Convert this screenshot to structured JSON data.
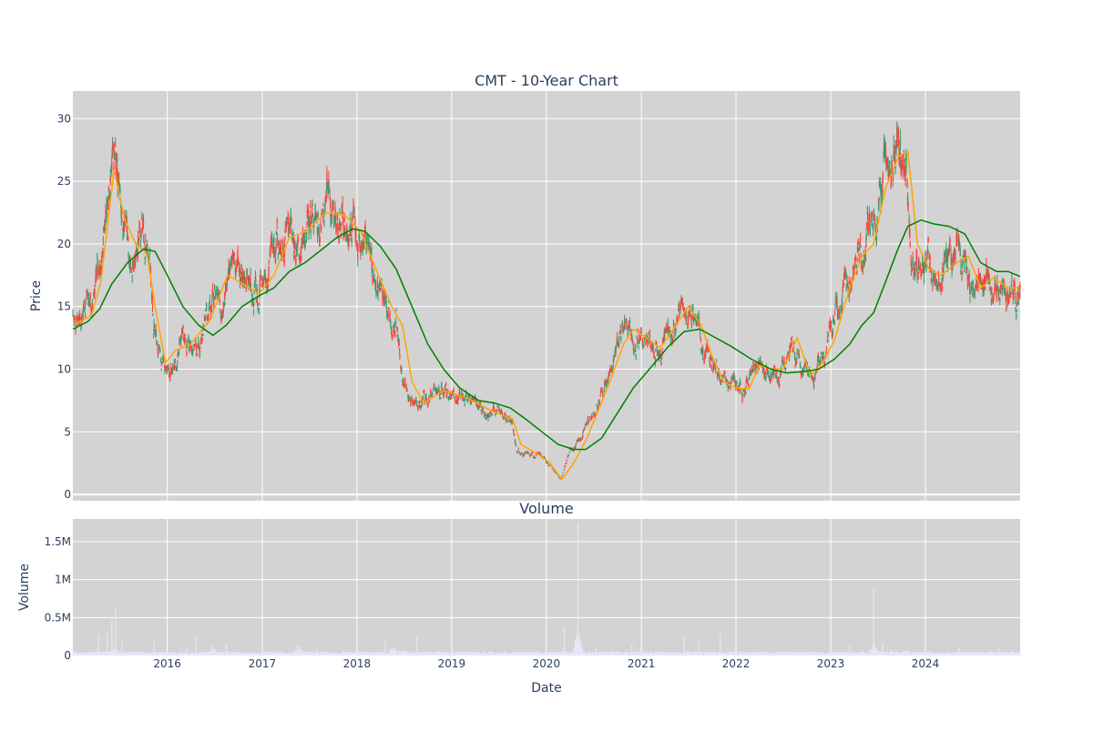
{
  "chart_data": [
    {
      "type": "candlestick",
      "title": "CMT - 10-Year Chart",
      "xlabel": "",
      "ylabel": "Price",
      "x_range": [
        "2015-01-02",
        "2024-12-31"
      ],
      "ylim": [
        -0.5,
        32.2
      ],
      "y_ticks": [
        0,
        5,
        10,
        15,
        20,
        25,
        30
      ],
      "x_ticks": [
        "2016",
        "2017",
        "2018",
        "2019",
        "2020",
        "2021",
        "2022",
        "2023",
        "2024"
      ],
      "grid": true,
      "background": "#d3d3d3",
      "colors": {
        "increasing": "#3d9970",
        "decreasing": "#ff4136",
        "short_ma": "#ffa500",
        "long_ma": "#008000"
      },
      "price_path": [
        [
          "2015-01-02",
          14.0
        ],
        [
          "2015-02-15",
          14.5
        ],
        [
          "2015-03-20",
          15.5
        ],
        [
          "2015-04-20",
          20.0
        ],
        [
          "2015-05-20",
          25.5
        ],
        [
          "2015-06-10",
          27.5
        ],
        [
          "2015-07-10",
          22.0
        ],
        [
          "2015-08-15",
          19.5
        ],
        [
          "2015-09-20",
          20.5
        ],
        [
          "2015-10-25",
          18.5
        ],
        [
          "2015-11-10",
          14.0
        ],
        [
          "2015-12-15",
          10.5
        ],
        [
          "2016-01-20",
          10.2
        ],
        [
          "2016-03-01",
          12.5
        ],
        [
          "2016-04-15",
          12.0
        ],
        [
          "2016-05-20",
          13.0
        ],
        [
          "2016-06-25",
          16.0
        ],
        [
          "2016-07-25",
          15.0
        ],
        [
          "2016-08-25",
          18.5
        ],
        [
          "2016-09-25",
          16.5
        ],
        [
          "2016-11-01",
          17.0
        ],
        [
          "2016-12-10",
          16.0
        ],
        [
          "2017-01-25",
          17.5
        ],
        [
          "2017-03-01",
          20.0
        ],
        [
          "2017-04-01",
          21.5
        ],
        [
          "2017-05-10",
          21.0
        ],
        [
          "2017-06-20",
          21.5
        ],
        [
          "2017-08-01",
          22.5
        ],
        [
          "2017-09-10",
          22.8
        ],
        [
          "2017-10-20",
          22.0
        ],
        [
          "2017-12-01",
          21.5
        ],
        [
          "2018-01-10",
          20.5
        ],
        [
          "2018-02-15",
          18.0
        ],
        [
          "2018-03-20",
          16.0
        ],
        [
          "2018-04-25",
          15.0
        ],
        [
          "2018-06-01",
          14.0
        ],
        [
          "2018-06-25",
          9.5
        ],
        [
          "2018-07-25",
          7.5
        ],
        [
          "2018-09-01",
          7.2
        ],
        [
          "2018-10-15",
          7.8
        ],
        [
          "2018-12-01",
          8.3
        ],
        [
          "2019-01-15",
          7.5
        ],
        [
          "2019-03-01",
          7.7
        ],
        [
          "2019-05-01",
          7.0
        ],
        [
          "2019-07-01",
          6.3
        ],
        [
          "2019-08-20",
          6.0
        ],
        [
          "2019-09-10",
          3.3
        ],
        [
          "2019-10-20",
          3.3
        ],
        [
          "2019-12-15",
          3.0
        ],
        [
          "2020-01-20",
          2.3
        ],
        [
          "2020-02-25",
          1.2
        ],
        [
          "2020-04-01",
          3.5
        ],
        [
          "2020-05-15",
          4.5
        ],
        [
          "2020-06-20",
          6.0
        ],
        [
          "2020-08-01",
          8.5
        ],
        [
          "2020-09-15",
          10.5
        ],
        [
          "2020-11-01",
          13.5
        ],
        [
          "2020-12-15",
          13.0
        ],
        [
          "2021-02-01",
          12.0
        ],
        [
          "2021-03-15",
          11.8
        ],
        [
          "2021-05-01",
          13.5
        ],
        [
          "2021-06-15",
          15.5
        ],
        [
          "2021-08-01",
          14.0
        ],
        [
          "2021-09-15",
          11.5
        ],
        [
          "2021-10-25",
          9.5
        ],
        [
          "2021-12-01",
          8.5
        ],
        [
          "2022-02-01",
          8.5
        ],
        [
          "2022-03-15",
          10.5
        ],
        [
          "2022-05-01",
          10.0
        ],
        [
          "2022-06-15",
          9.5
        ],
        [
          "2022-08-01",
          12.5
        ],
        [
          "2022-09-15",
          9.5
        ],
        [
          "2022-11-01",
          10.0
        ],
        [
          "2022-12-20",
          12.5
        ],
        [
          "2023-02-01",
          15.5
        ],
        [
          "2023-03-20",
          18.0
        ],
        [
          "2023-05-01",
          19.5
        ],
        [
          "2023-06-15",
          22.5
        ],
        [
          "2023-07-25",
          26.0
        ],
        [
          "2023-09-01",
          27.5
        ],
        [
          "2023-10-20",
          26.5
        ],
        [
          "2023-11-05",
          17.5
        ],
        [
          "2023-12-20",
          18.5
        ],
        [
          "2024-02-01",
          17.5
        ],
        [
          "2024-03-15",
          18.5
        ],
        [
          "2024-05-01",
          19.0
        ],
        [
          "2024-06-01",
          18.5
        ],
        [
          "2024-07-01",
          16.0
        ],
        [
          "2024-08-15",
          17.5
        ],
        [
          "2024-10-01",
          17.0
        ],
        [
          "2024-11-15",
          16.5
        ],
        [
          "2024-12-31",
          16.3
        ]
      ],
      "series": [
        {
          "kind": "moving-average-short",
          "color": "#ffa500",
          "points": [
            [
              "2015-01-02",
              13.5
            ],
            [
              "2015-03-15",
              14.3
            ],
            [
              "2015-04-20",
              17.0
            ],
            [
              "2015-06-10",
              25.9
            ],
            [
              "2015-07-20",
              22.0
            ],
            [
              "2015-09-01",
              20.0
            ],
            [
              "2015-10-15",
              19.2
            ],
            [
              "2015-11-15",
              15.0
            ],
            [
              "2015-12-25",
              10.5
            ],
            [
              "2016-02-01",
              11.5
            ],
            [
              "2016-04-01",
              12.0
            ],
            [
              "2016-06-15",
              14.0
            ],
            [
              "2016-08-20",
              17.5
            ],
            [
              "2016-10-20",
              16.8
            ],
            [
              "2016-12-20",
              16.0
            ],
            [
              "2017-02-15",
              17.5
            ],
            [
              "2017-04-15",
              20.5
            ],
            [
              "2017-06-20",
              21.0
            ],
            [
              "2017-09-01",
              22.5
            ],
            [
              "2017-11-15",
              22.3
            ],
            [
              "2018-01-15",
              21.0
            ],
            [
              "2018-03-15",
              18.0
            ],
            [
              "2018-05-15",
              15.0
            ],
            [
              "2018-06-25",
              13.5
            ],
            [
              "2018-08-01",
              9.0
            ],
            [
              "2018-09-15",
              7.3
            ],
            [
              "2018-12-01",
              8.3
            ],
            [
              "2019-03-01",
              7.7
            ],
            [
              "2019-06-01",
              6.7
            ],
            [
              "2019-08-25",
              6.0
            ],
            [
              "2019-09-25",
              4.0
            ],
            [
              "2019-12-01",
              3.2
            ],
            [
              "2020-01-15",
              2.5
            ],
            [
              "2020-03-01",
              1.2
            ],
            [
              "2020-04-15",
              2.5
            ],
            [
              "2020-06-01",
              4.3
            ],
            [
              "2020-07-15",
              6.5
            ],
            [
              "2020-09-01",
              9.0
            ],
            [
              "2020-10-25",
              12.0
            ],
            [
              "2020-12-01",
              13.2
            ],
            [
              "2021-01-20",
              12.5
            ],
            [
              "2021-03-15",
              11.7
            ],
            [
              "2021-05-15",
              13.5
            ],
            [
              "2021-07-01",
              15.0
            ],
            [
              "2021-08-20",
              13.5
            ],
            [
              "2021-10-01",
              11.0
            ],
            [
              "2021-11-15",
              9.0
            ],
            [
              "2022-01-01",
              8.5
            ],
            [
              "2022-02-20",
              8.4
            ],
            [
              "2022-04-01",
              10.3
            ],
            [
              "2022-05-25",
              10.0
            ],
            [
              "2022-07-01",
              10.0
            ],
            [
              "2022-08-25",
              12.5
            ],
            [
              "2022-10-15",
              9.5
            ],
            [
              "2022-12-01",
              10.5
            ],
            [
              "2023-01-15",
              12.3
            ],
            [
              "2023-03-15",
              16.5
            ],
            [
              "2023-05-01",
              19.0
            ],
            [
              "2023-06-15",
              20.0
            ],
            [
              "2023-08-01",
              24.5
            ],
            [
              "2023-09-20",
              27.0
            ],
            [
              "2023-10-25",
              27.4
            ],
            [
              "2023-12-01",
              20.0
            ],
            [
              "2024-01-15",
              18.0
            ],
            [
              "2024-03-01",
              17.5
            ],
            [
              "2024-05-01",
              18.5
            ],
            [
              "2024-06-15",
              19.0
            ],
            [
              "2024-08-01",
              16.5
            ],
            [
              "2024-09-20",
              17.3
            ],
            [
              "2024-11-15",
              16.5
            ],
            [
              "2024-12-31",
              16.5
            ]
          ]
        },
        {
          "kind": "moving-average-long",
          "color": "#008000",
          "points": [
            [
              "2015-01-02",
              13.2
            ],
            [
              "2015-03-01",
              13.8
            ],
            [
              "2015-04-15",
              14.8
            ],
            [
              "2015-06-01",
              16.8
            ],
            [
              "2015-08-01",
              18.5
            ],
            [
              "2015-10-01",
              19.6
            ],
            [
              "2015-11-15",
              19.4
            ],
            [
              "2016-01-01",
              17.5
            ],
            [
              "2016-03-01",
              15.0
            ],
            [
              "2016-05-01",
              13.5
            ],
            [
              "2016-06-25",
              12.7
            ],
            [
              "2016-08-15",
              13.5
            ],
            [
              "2016-10-15",
              15.0
            ],
            [
              "2016-12-15",
              15.8
            ],
            [
              "2017-02-15",
              16.5
            ],
            [
              "2017-04-15",
              17.8
            ],
            [
              "2017-06-15",
              18.5
            ],
            [
              "2017-08-15",
              19.5
            ],
            [
              "2017-10-15",
              20.5
            ],
            [
              "2017-12-15",
              21.2
            ],
            [
              "2018-02-01",
              21.0
            ],
            [
              "2018-04-01",
              19.8
            ],
            [
              "2018-06-01",
              18.0
            ],
            [
              "2018-08-01",
              15.0
            ],
            [
              "2018-10-01",
              12.0
            ],
            [
              "2018-12-01",
              10.0
            ],
            [
              "2019-02-01",
              8.5
            ],
            [
              "2019-04-15",
              7.5
            ],
            [
              "2019-06-15",
              7.3
            ],
            [
              "2019-08-15",
              6.9
            ],
            [
              "2019-10-15",
              6.0
            ],
            [
              "2019-12-15",
              5.0
            ],
            [
              "2020-02-15",
              4.0
            ],
            [
              "2020-04-15",
              3.6
            ],
            [
              "2020-06-01",
              3.6
            ],
            [
              "2020-08-01",
              4.5
            ],
            [
              "2020-10-01",
              6.5
            ],
            [
              "2020-12-01",
              8.5
            ],
            [
              "2021-02-01",
              10.0
            ],
            [
              "2021-04-15",
              11.8
            ],
            [
              "2021-06-15",
              13.0
            ],
            [
              "2021-08-15",
              13.2
            ],
            [
              "2021-10-15",
              12.5
            ],
            [
              "2021-12-15",
              11.8
            ],
            [
              "2022-03-01",
              10.8
            ],
            [
              "2022-05-15",
              10.0
            ],
            [
              "2022-07-15",
              9.7
            ],
            [
              "2022-09-15",
              9.8
            ],
            [
              "2022-11-15",
              10.0
            ],
            [
              "2023-01-15",
              10.8
            ],
            [
              "2023-03-15",
              12.0
            ],
            [
              "2023-05-01",
              13.5
            ],
            [
              "2023-06-15",
              14.5
            ],
            [
              "2023-08-01",
              17.0
            ],
            [
              "2023-09-15",
              19.5
            ],
            [
              "2023-10-25",
              21.4
            ],
            [
              "2023-12-15",
              21.9
            ],
            [
              "2024-02-01",
              21.6
            ],
            [
              "2024-04-01",
              21.4
            ],
            [
              "2024-06-01",
              20.8
            ],
            [
              "2024-08-01",
              18.5
            ],
            [
              "2024-10-01",
              17.8
            ],
            [
              "2024-11-15",
              17.8
            ],
            [
              "2024-12-31",
              17.4
            ]
          ]
        }
      ]
    },
    {
      "type": "bar",
      "title": "Volume",
      "xlabel": "Date",
      "ylabel": "Volume",
      "x_range": [
        "2015-01-02",
        "2024-12-31"
      ],
      "ylim": [
        0,
        1800000
      ],
      "y_ticks": [
        {
          "value": 0,
          "label": "0"
        },
        {
          "value": 500000,
          "label": "0.5M"
        },
        {
          "value": 1000000,
          "label": "1M"
        },
        {
          "value": 1500000,
          "label": "1.5M"
        }
      ],
      "x_ticks": [
        "2016",
        "2017",
        "2018",
        "2019",
        "2020",
        "2021",
        "2022",
        "2023",
        "2024"
      ],
      "grid": true,
      "background": "#d3d3d3",
      "colors": {
        "bar": "#e6e6fa"
      },
      "base_level": 30000,
      "spikes": [
        [
          "2015-04-10",
          280000
        ],
        [
          "2015-05-15",
          300000
        ],
        [
          "2015-06-01",
          450000
        ],
        [
          "2015-06-15",
          620000
        ],
        [
          "2015-07-10",
          180000
        ],
        [
          "2015-11-10",
          180000
        ],
        [
          "2016-03-15",
          120000
        ],
        [
          "2016-04-20",
          250000
        ],
        [
          "2016-06-25",
          650000
        ],
        [
          "2016-08-15",
          150000
        ],
        [
          "2016-09-10",
          230000
        ],
        [
          "2017-05-20",
          700000
        ],
        [
          "2017-08-01",
          100000
        ],
        [
          "2018-04-20",
          200000
        ],
        [
          "2018-05-20",
          700000
        ],
        [
          "2018-07-01",
          420000
        ],
        [
          "2018-08-20",
          250000
        ],
        [
          "2018-09-15",
          240000
        ],
        [
          "2019-11-10",
          270000
        ],
        [
          "2020-03-10",
          380000
        ],
        [
          "2020-05-01",
          1750000
        ],
        [
          "2020-07-10",
          100000
        ],
        [
          "2020-11-25",
          150000
        ],
        [
          "2021-01-10",
          200000
        ],
        [
          "2021-06-15",
          250000
        ],
        [
          "2021-08-10",
          220000
        ],
        [
          "2021-11-01",
          290000
        ],
        [
          "2023-03-15",
          140000
        ],
        [
          "2023-06-15",
          900000
        ],
        [
          "2023-07-20",
          150000
        ],
        [
          "2023-08-20",
          400000
        ],
        [
          "2023-10-15",
          360000
        ],
        [
          "2023-12-10",
          280000
        ],
        [
          "2024-02-10",
          110000
        ],
        [
          "2024-05-10",
          100000
        ],
        [
          "2024-10-10",
          90000
        ]
      ]
    }
  ]
}
